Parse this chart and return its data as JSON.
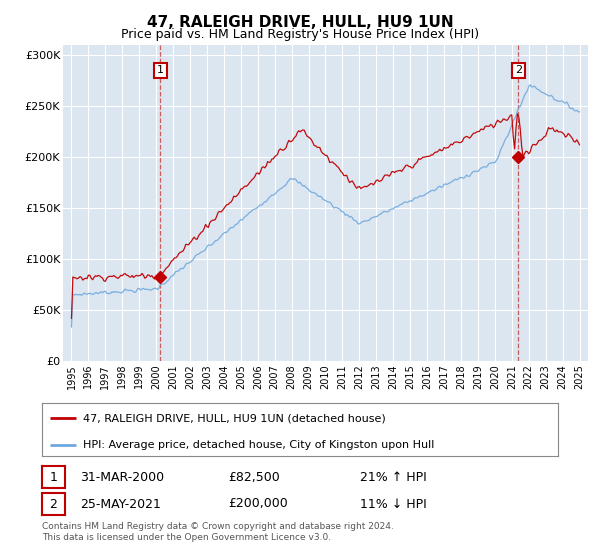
{
  "title": "47, RALEIGH DRIVE, HULL, HU9 1UN",
  "subtitle": "Price paid vs. HM Land Registry's House Price Index (HPI)",
  "legend_line1": "47, RALEIGH DRIVE, HULL, HU9 1UN (detached house)",
  "legend_line2": "HPI: Average price, detached house, City of Kingston upon Hull",
  "footnote": "Contains HM Land Registry data © Crown copyright and database right 2024.\nThis data is licensed under the Open Government Licence v3.0.",
  "sale1_date": "31-MAR-2000",
  "sale1_price": "£82,500",
  "sale1_hpi": "21% ↑ HPI",
  "sale1_year": 2000.25,
  "sale1_value": 82500,
  "sale2_date": "25-MAY-2021",
  "sale2_price": "£200,000",
  "sale2_hpi": "11% ↓ HPI",
  "sale2_year": 2021.38,
  "sale2_value": 200000,
  "bg_color": "#dce6f1",
  "red_color": "#c00000",
  "blue_color": "#6fa8dc",
  "grid_color": "#ffffff",
  "ylim": [
    0,
    310000
  ],
  "xlim": [
    1994.5,
    2025.5
  ],
  "yticks": [
    0,
    50000,
    100000,
    150000,
    200000,
    250000,
    300000
  ],
  "ytick_labels": [
    "£0",
    "£50K",
    "£100K",
    "£150K",
    "£200K",
    "£250K",
    "£300K"
  ],
  "xticks": [
    1995,
    1996,
    1997,
    1998,
    1999,
    2000,
    2001,
    2002,
    2003,
    2004,
    2005,
    2006,
    2007,
    2008,
    2009,
    2010,
    2011,
    2012,
    2013,
    2014,
    2015,
    2016,
    2017,
    2018,
    2019,
    2020,
    2021,
    2022,
    2023,
    2024,
    2025
  ]
}
